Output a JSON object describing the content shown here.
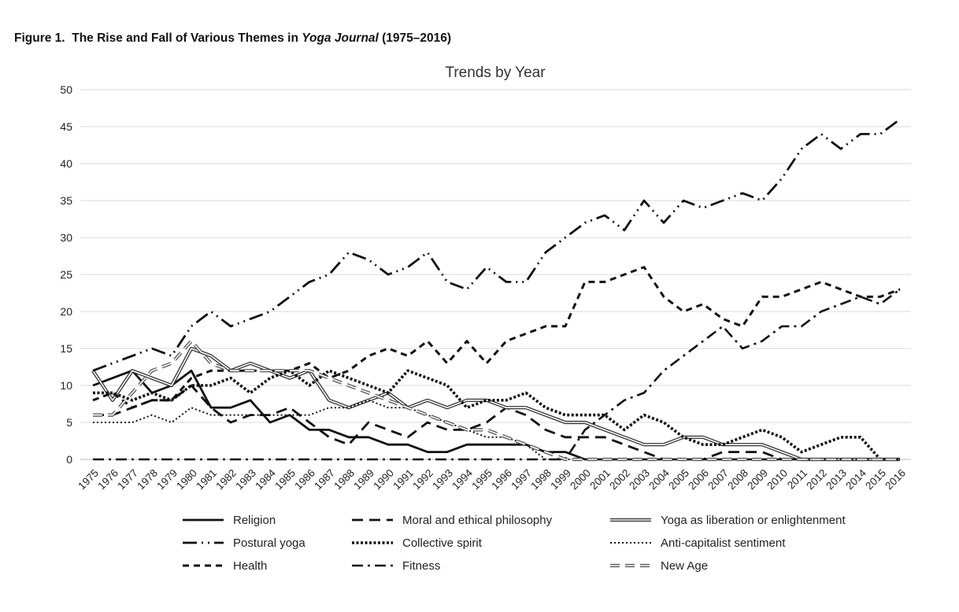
{
  "figure": {
    "label": "Figure 1.",
    "title_prefix": "The Rise and Fall of Various Themes in ",
    "title_italic": "Yoga Journal",
    "title_suffix": " (1975–2016)"
  },
  "chart_data": {
    "type": "line",
    "title": "Trends by Year",
    "xlabel": "",
    "ylabel": "",
    "ylim": [
      0,
      50
    ],
    "yticks": [
      0,
      5,
      10,
      15,
      20,
      25,
      30,
      35,
      40,
      45,
      50
    ],
    "grid": "horizontal",
    "legend_position": "bottom",
    "x": [
      "1975",
      "1976",
      "1977",
      "1978",
      "1979",
      "1980",
      "1981",
      "1982",
      "1983",
      "1984",
      "1985",
      "1986",
      "1987",
      "1988",
      "1989",
      "1990",
      "1991",
      "1992",
      "1993",
      "1994",
      "1995",
      "1996",
      "1997",
      "1998",
      "1999",
      "2000",
      "2001",
      "2002",
      "2003",
      "2004",
      "2005",
      "2006",
      "2007",
      "2008",
      "2009",
      "2010",
      "2011",
      "2012",
      "2013",
      "2014",
      "2015",
      "2016"
    ],
    "series": [
      {
        "name": "Religion",
        "style": "solid",
        "values": [
          10,
          11,
          12,
          9,
          10,
          12,
          7,
          7,
          8,
          5,
          6,
          4,
          4,
          3,
          3,
          2,
          2,
          1,
          1,
          2,
          2,
          2,
          2,
          1,
          1,
          0,
          0,
          0,
          0,
          0,
          0,
          0,
          0,
          0,
          0,
          0,
          0,
          0,
          0,
          0,
          0,
          0
        ]
      },
      {
        "name": "Moral and ethical philosophy",
        "style": "dash",
        "values": [
          6,
          6,
          7,
          8,
          8,
          10,
          7,
          5,
          6,
          6,
          7,
          5,
          3,
          2,
          5,
          4,
          3,
          5,
          4,
          4,
          5,
          7,
          6,
          4,
          3,
          3,
          3,
          2,
          1,
          0,
          0,
          0,
          1,
          1,
          1,
          0,
          0,
          0,
          0,
          0,
          0,
          0
        ]
      },
      {
        "name": "Yoga as liberation or enlightenment",
        "style": "double",
        "values": [
          12,
          8,
          12,
          11,
          10,
          15,
          14,
          12,
          13,
          12,
          11,
          12,
          8,
          7,
          8,
          9,
          7,
          8,
          7,
          8,
          8,
          7,
          7,
          6,
          5,
          5,
          4,
          3,
          2,
          2,
          3,
          3,
          2,
          2,
          2,
          1,
          0,
          0,
          0,
          0,
          0,
          0
        ]
      },
      {
        "name": "Postural yoga",
        "style": "dashdot-long",
        "values": [
          12,
          13,
          14,
          15,
          14,
          18,
          20,
          18,
          19,
          20,
          22,
          24,
          25,
          28,
          27,
          25,
          26,
          28,
          24,
          23,
          26,
          24,
          24,
          28,
          30,
          32,
          33,
          31,
          35,
          32,
          35,
          34,
          35,
          36,
          35,
          38,
          42,
          44,
          42,
          44,
          44,
          46
        ]
      },
      {
        "name": "Collective spirit",
        "style": "dotted-heavy",
        "values": [
          9,
          9,
          8,
          9,
          8,
          10,
          10,
          11,
          9,
          11,
          12,
          10,
          12,
          11,
          10,
          9,
          12,
          11,
          10,
          7,
          8,
          8,
          9,
          7,
          6,
          6,
          6,
          4,
          6,
          5,
          3,
          2,
          2,
          3,
          4,
          3,
          1,
          2,
          3,
          3,
          0,
          0
        ]
      },
      {
        "name": "Anti-capitalist sentiment",
        "style": "dotted",
        "values": [
          5,
          5,
          5,
          6,
          5,
          7,
          6,
          6,
          6,
          6,
          6,
          6,
          7,
          7,
          8,
          7,
          7,
          6,
          5,
          4,
          3,
          3,
          2,
          0,
          0,
          0,
          0,
          0,
          0,
          0,
          0,
          0,
          0,
          0,
          0,
          0,
          0,
          0,
          0,
          0,
          0,
          0
        ]
      },
      {
        "name": "Health",
        "style": "dash-medium",
        "values": [
          8,
          9,
          7,
          8,
          8,
          11,
          12,
          12,
          12,
          12,
          12,
          13,
          11,
          12,
          14,
          15,
          14,
          16,
          13,
          16,
          13,
          16,
          17,
          18,
          18,
          24,
          24,
          25,
          26,
          22,
          20,
          21,
          19,
          18,
          22,
          22,
          23,
          24,
          23,
          22,
          22,
          23
        ]
      },
      {
        "name": "Fitness",
        "style": "dashdot",
        "values": [
          0,
          0,
          0,
          0,
          0,
          0,
          0,
          0,
          0,
          0,
          0,
          0,
          0,
          0,
          0,
          0,
          0,
          0,
          0,
          0,
          0,
          0,
          0,
          0,
          0,
          4,
          6,
          8,
          9,
          12,
          14,
          16,
          18,
          15,
          16,
          18,
          18,
          20,
          21,
          22,
          21,
          23
        ]
      },
      {
        "name": "New Age",
        "style": "double-dash",
        "values": [
          6,
          6,
          9,
          12,
          13,
          16,
          13,
          12,
          12,
          12,
          12,
          12,
          11,
          10,
          9,
          8,
          7,
          6,
          5,
          4,
          4,
          3,
          2,
          1,
          0,
          0,
          0,
          0,
          0,
          0,
          0,
          0,
          0,
          0,
          0,
          0,
          0,
          0,
          0,
          0,
          0,
          0
        ]
      }
    ]
  }
}
